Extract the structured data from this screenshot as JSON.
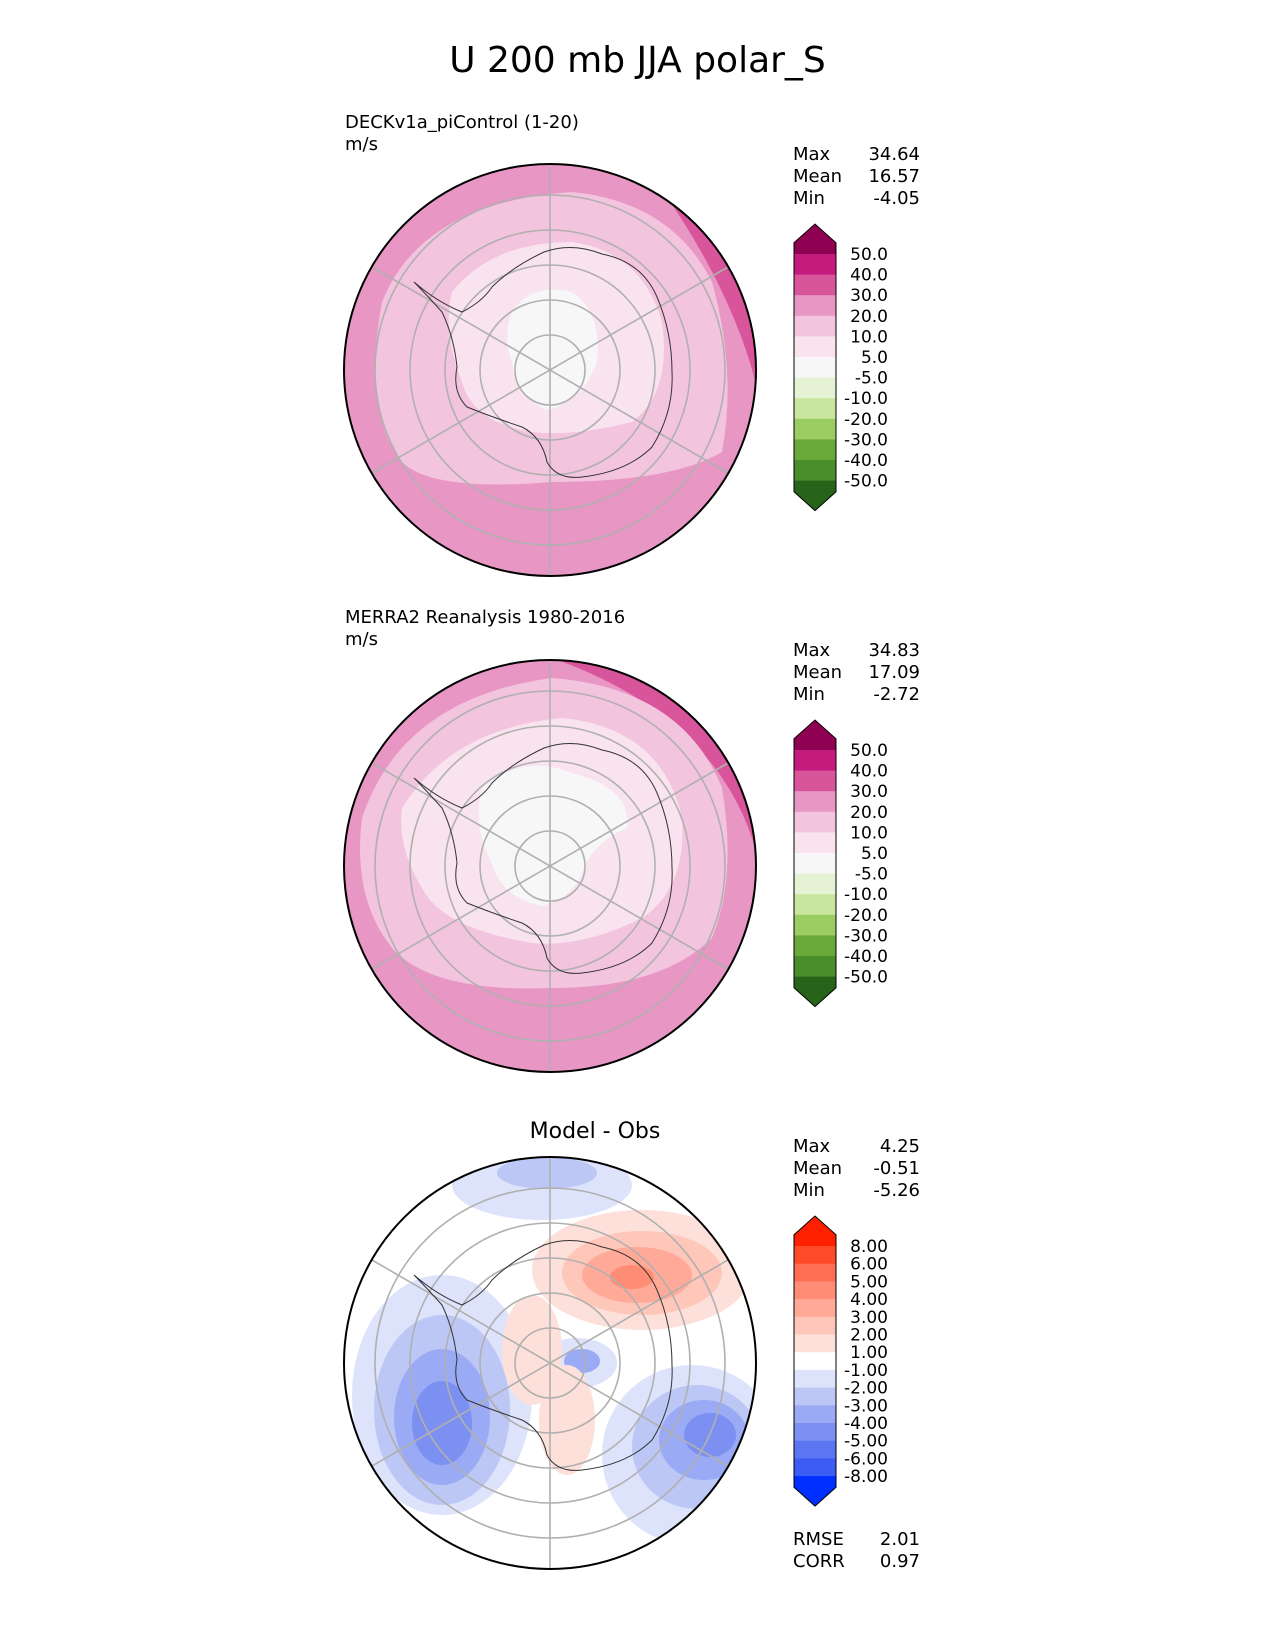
{
  "figure_title": "U 200 mb JJA polar_S",
  "panels": [
    {
      "title": "DECKv1a_piControl (1-20)",
      "units": "m/s",
      "stats": [
        {
          "label": "Max",
          "value": "34.64"
        },
        {
          "label": "Mean",
          "value": "16.57"
        },
        {
          "label": "Min",
          "value": "-4.05"
        }
      ]
    },
    {
      "title": "MERRA2 Reanalysis 1980-2016",
      "units": "m/s",
      "stats": [
        {
          "label": "Max",
          "value": "34.83"
        },
        {
          "label": "Mean",
          "value": "17.09"
        },
        {
          "label": "Min",
          "value": "-2.72"
        }
      ]
    },
    {
      "title": "Model - Obs",
      "stats": [
        {
          "label": "Max",
          "value": "4.25"
        },
        {
          "label": "Mean",
          "value": "-0.51"
        },
        {
          "label": "Min",
          "value": "-5.26"
        }
      ],
      "metrics": [
        {
          "label": "RMSE",
          "value": "2.01"
        },
        {
          "label": "CORR",
          "value": "0.97"
        }
      ]
    }
  ],
  "colorbars": {
    "field": {
      "ticks": [
        "50.0",
        "40.0",
        "30.0",
        "20.0",
        "10.0",
        "5.0",
        "-5.0",
        "-10.0",
        "-20.0",
        "-30.0",
        "-40.0",
        "-50.0"
      ],
      "top_color": "#8e0152",
      "bottom_color": "#276419",
      "colors": [
        "#c51b7d",
        "#d8559c",
        "#e896c4",
        "#f2c4de",
        "#f9e3ef",
        "#f7f7f7",
        "#e6f2d4",
        "#c8e6a0",
        "#9ccd63",
        "#6aa83a",
        "#4a8d2b"
      ]
    },
    "diff": {
      "ticks": [
        "8.00",
        "6.00",
        "5.00",
        "4.00",
        "3.00",
        "2.00",
        "1.00",
        "-1.00",
        "-2.00",
        "-3.00",
        "-4.00",
        "-5.00",
        "-6.00",
        "-8.00"
      ],
      "top_color": "#ff2000",
      "bottom_color": "#0030ff",
      "colors": [
        "#ff4a28",
        "#ff6e52",
        "#ff8d76",
        "#ffaa98",
        "#ffc7b9",
        "#fde0d9",
        "#ffffff",
        "#dde3fb",
        "#bcc7f6",
        "#9aaaf4",
        "#7c90f2",
        "#5c76f2",
        "#3d5cf5"
      ]
    }
  }
}
